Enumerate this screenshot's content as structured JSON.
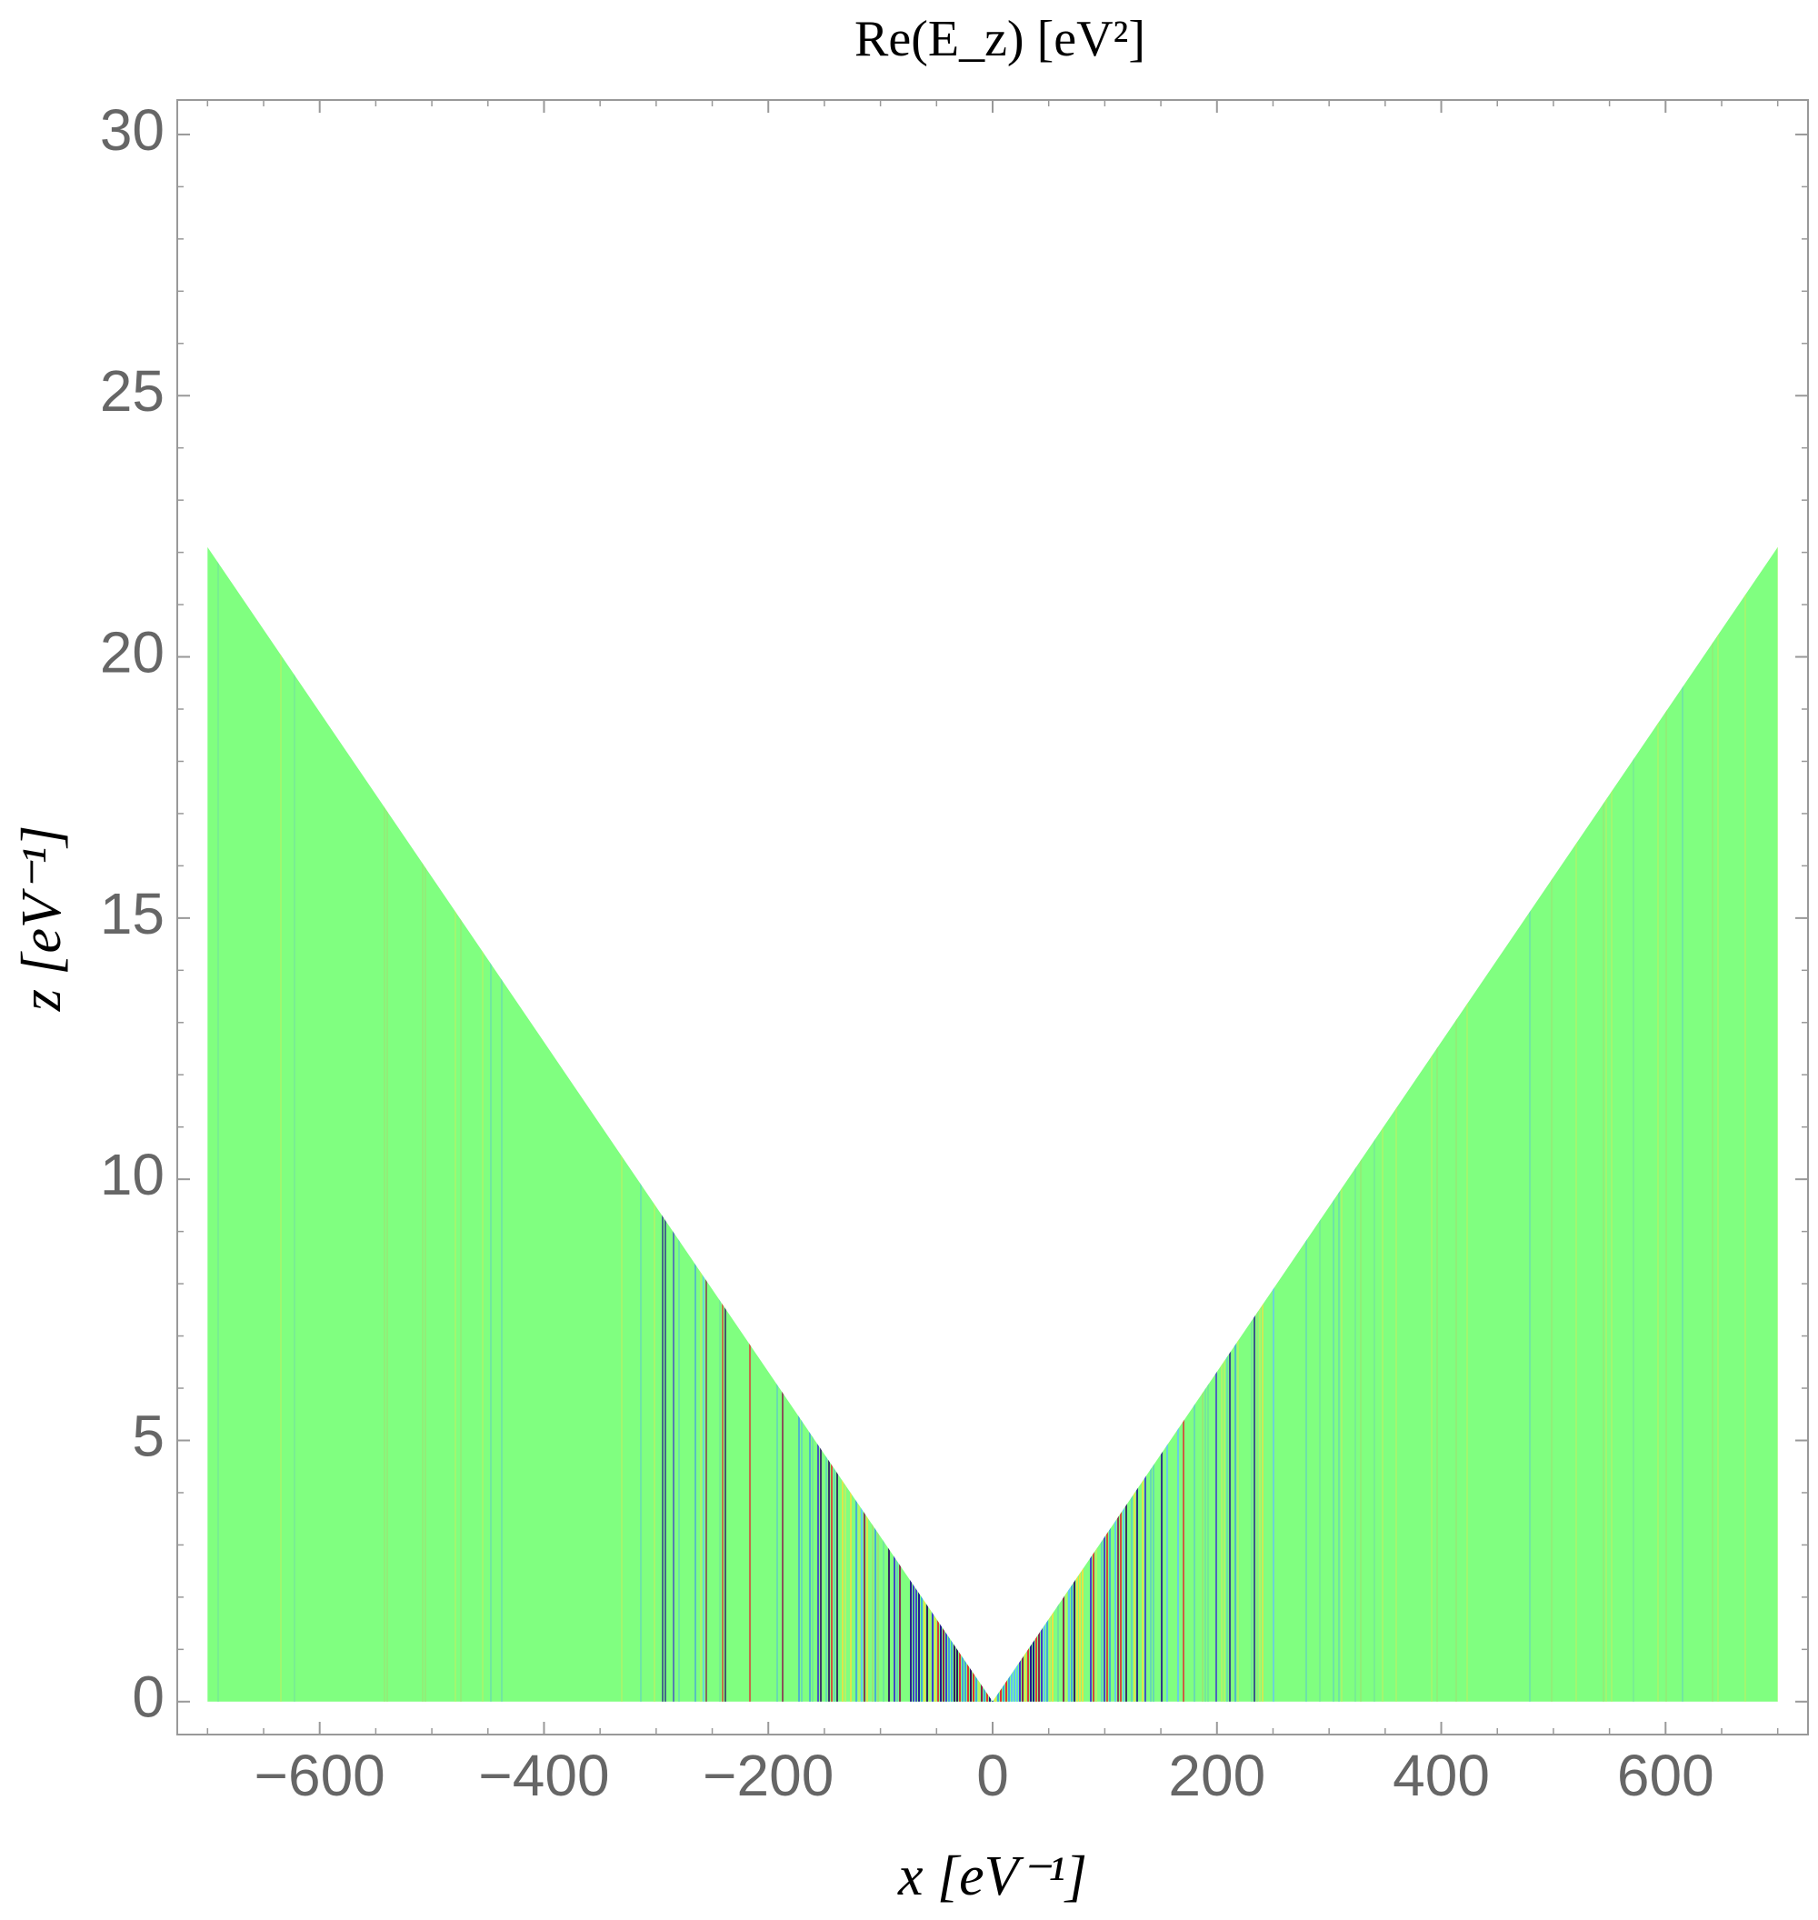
{
  "chart_data": {
    "type": "density",
    "title": "Re(E_z) [eV²]",
    "xlabel": "x [eV⁻¹]",
    "ylabel": "z [eV⁻¹]",
    "boundary": {
      "x": [
        -700,
        -700,
        0,
        700,
        700
      ],
      "z": [
        0,
        22.1,
        0,
        22.1,
        0
      ]
    },
    "color": "#80ff80",
    "xlim": [
      -727,
      727
    ],
    "ylim": [
      -0.63,
      30.66
    ],
    "xticks": [
      {
        "value": -600,
        "label": "−600"
      },
      {
        "value": -400,
        "label": "−400"
      },
      {
        "value": -200,
        "label": "−200"
      },
      0,
      200,
      400,
      600
    ],
    "yticks": [
      0,
      5,
      10,
      15,
      20,
      25,
      30
    ]
  }
}
